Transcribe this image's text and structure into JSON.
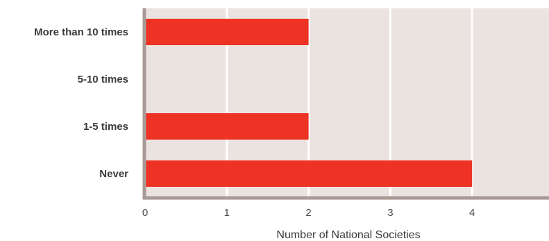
{
  "chart_data": {
    "type": "bar",
    "orientation": "horizontal",
    "categories": [
      "More than 10 times",
      "5-10 times",
      "1-5 times",
      "Never"
    ],
    "values": [
      2,
      0,
      2,
      4
    ],
    "xlabel": "Number of National Societies",
    "ylabel": "",
    "xlim": [
      0,
      5
    ],
    "xticks": [
      "0",
      "1",
      "2",
      "3",
      "4",
      "5"
    ],
    "grid": true,
    "colors": {
      "bar": "#ee3224",
      "plot_background": "#ebe3e0",
      "grid": "#ffffff",
      "axis": "#a89a95"
    }
  }
}
